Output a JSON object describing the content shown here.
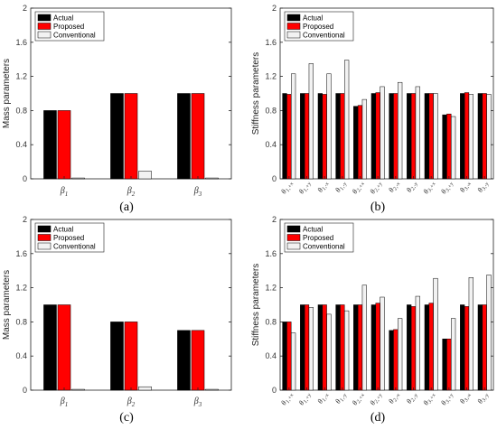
{
  "colors": {
    "Actual": "#000000",
    "Proposed": "#ff0000",
    "Conventional": "#f2f2f2"
  },
  "chart_data": [
    {
      "id": "a",
      "caption": "(a)",
      "type": "bar",
      "ylabel": "Mass parameters",
      "ylim": [
        0,
        2
      ],
      "yticks": [
        "0",
        "0.4",
        "0.8",
        "1.2",
        "1.6",
        "2"
      ],
      "legend": [
        "Actual",
        "Proposed",
        "Conventional"
      ],
      "legend_position": "top-left",
      "categories": [
        "β1",
        "β2",
        "β3"
      ],
      "series": [
        {
          "name": "Actual",
          "values": [
            0.8,
            1.0,
            1.0
          ]
        },
        {
          "name": "Proposed",
          "values": [
            0.8,
            1.0,
            1.0
          ]
        },
        {
          "name": "Conventional",
          "values": [
            0.01,
            0.09,
            0.01
          ]
        }
      ]
    },
    {
      "id": "b",
      "caption": "(b)",
      "type": "bar",
      "ylabel": "Stiffness parameters",
      "ylim": [
        0,
        2
      ],
      "yticks": [
        "0",
        "0.4",
        "0.8",
        "1.2",
        "1.6",
        "2"
      ],
      "legend": [
        "Actual",
        "Proposed",
        "Conventional"
      ],
      "legend_position": "top-left",
      "categories": [
        "θ1,+x",
        "θ1,+y",
        "θ1,-x",
        "θ1,-y",
        "θ2,+x",
        "θ2,+y",
        "θ2,-x",
        "θ2,-y",
        "θ3,+x",
        "θ3,+y",
        "θ3,-x",
        "θ3,-y"
      ],
      "series": [
        {
          "name": "Actual",
          "values": [
            1.0,
            1.0,
            1.0,
            1.0,
            0.85,
            1.0,
            1.0,
            1.0,
            1.0,
            0.75,
            1.0,
            1.0
          ]
        },
        {
          "name": "Proposed",
          "values": [
            0.99,
            1.0,
            0.99,
            1.0,
            0.86,
            1.01,
            1.0,
            1.0,
            1.0,
            0.76,
            1.01,
            1.0
          ]
        },
        {
          "name": "Conventional",
          "values": [
            1.23,
            1.35,
            1.23,
            1.39,
            0.93,
            1.08,
            1.13,
            1.08,
            1.0,
            0.73,
            0.99,
            0.99
          ]
        }
      ]
    },
    {
      "id": "c",
      "caption": "(c)",
      "type": "bar",
      "ylabel": "Mass parameters",
      "ylim": [
        0,
        2
      ],
      "yticks": [
        "0",
        "0.4",
        "0.8",
        "1.2",
        "1.6",
        "2"
      ],
      "legend": [
        "Actual",
        "Proposed",
        "Conventional"
      ],
      "legend_position": "top-left",
      "categories": [
        "β1",
        "β2",
        "β3"
      ],
      "series": [
        {
          "name": "Actual",
          "values": [
            1.0,
            0.8,
            0.7
          ]
        },
        {
          "name": "Proposed",
          "values": [
            1.0,
            0.8,
            0.7
          ]
        },
        {
          "name": "Conventional",
          "values": [
            0.01,
            0.04,
            0.01
          ]
        }
      ]
    },
    {
      "id": "d",
      "caption": "(d)",
      "type": "bar",
      "ylabel": "Stiffness parameters",
      "ylim": [
        0,
        2
      ],
      "yticks": [
        "0",
        "0.4",
        "0.8",
        "1.2",
        "1.6",
        "2"
      ],
      "legend": [
        "Actual",
        "Proposed",
        "Conventional"
      ],
      "legend_position": "top-left",
      "categories": [
        "θ1,+x",
        "θ1,+y",
        "θ1,-x",
        "θ1,-y",
        "θ2,+x",
        "θ2,+y",
        "θ2,-x",
        "θ2,-y",
        "θ3,+x",
        "θ3,+y",
        "θ3,-x",
        "θ3,-y"
      ],
      "series": [
        {
          "name": "Actual",
          "values": [
            0.8,
            1.0,
            1.0,
            1.0,
            1.0,
            1.0,
            0.7,
            1.0,
            1.0,
            0.6,
            1.0,
            1.0
          ]
        },
        {
          "name": "Proposed",
          "values": [
            0.8,
            1.0,
            1.0,
            1.0,
            1.0,
            1.02,
            0.71,
            0.98,
            1.02,
            0.6,
            0.98,
            1.0
          ]
        },
        {
          "name": "Conventional",
          "values": [
            0.67,
            0.97,
            0.89,
            0.93,
            1.23,
            1.09,
            0.84,
            1.1,
            1.31,
            0.84,
            1.32,
            1.35
          ]
        }
      ]
    }
  ]
}
